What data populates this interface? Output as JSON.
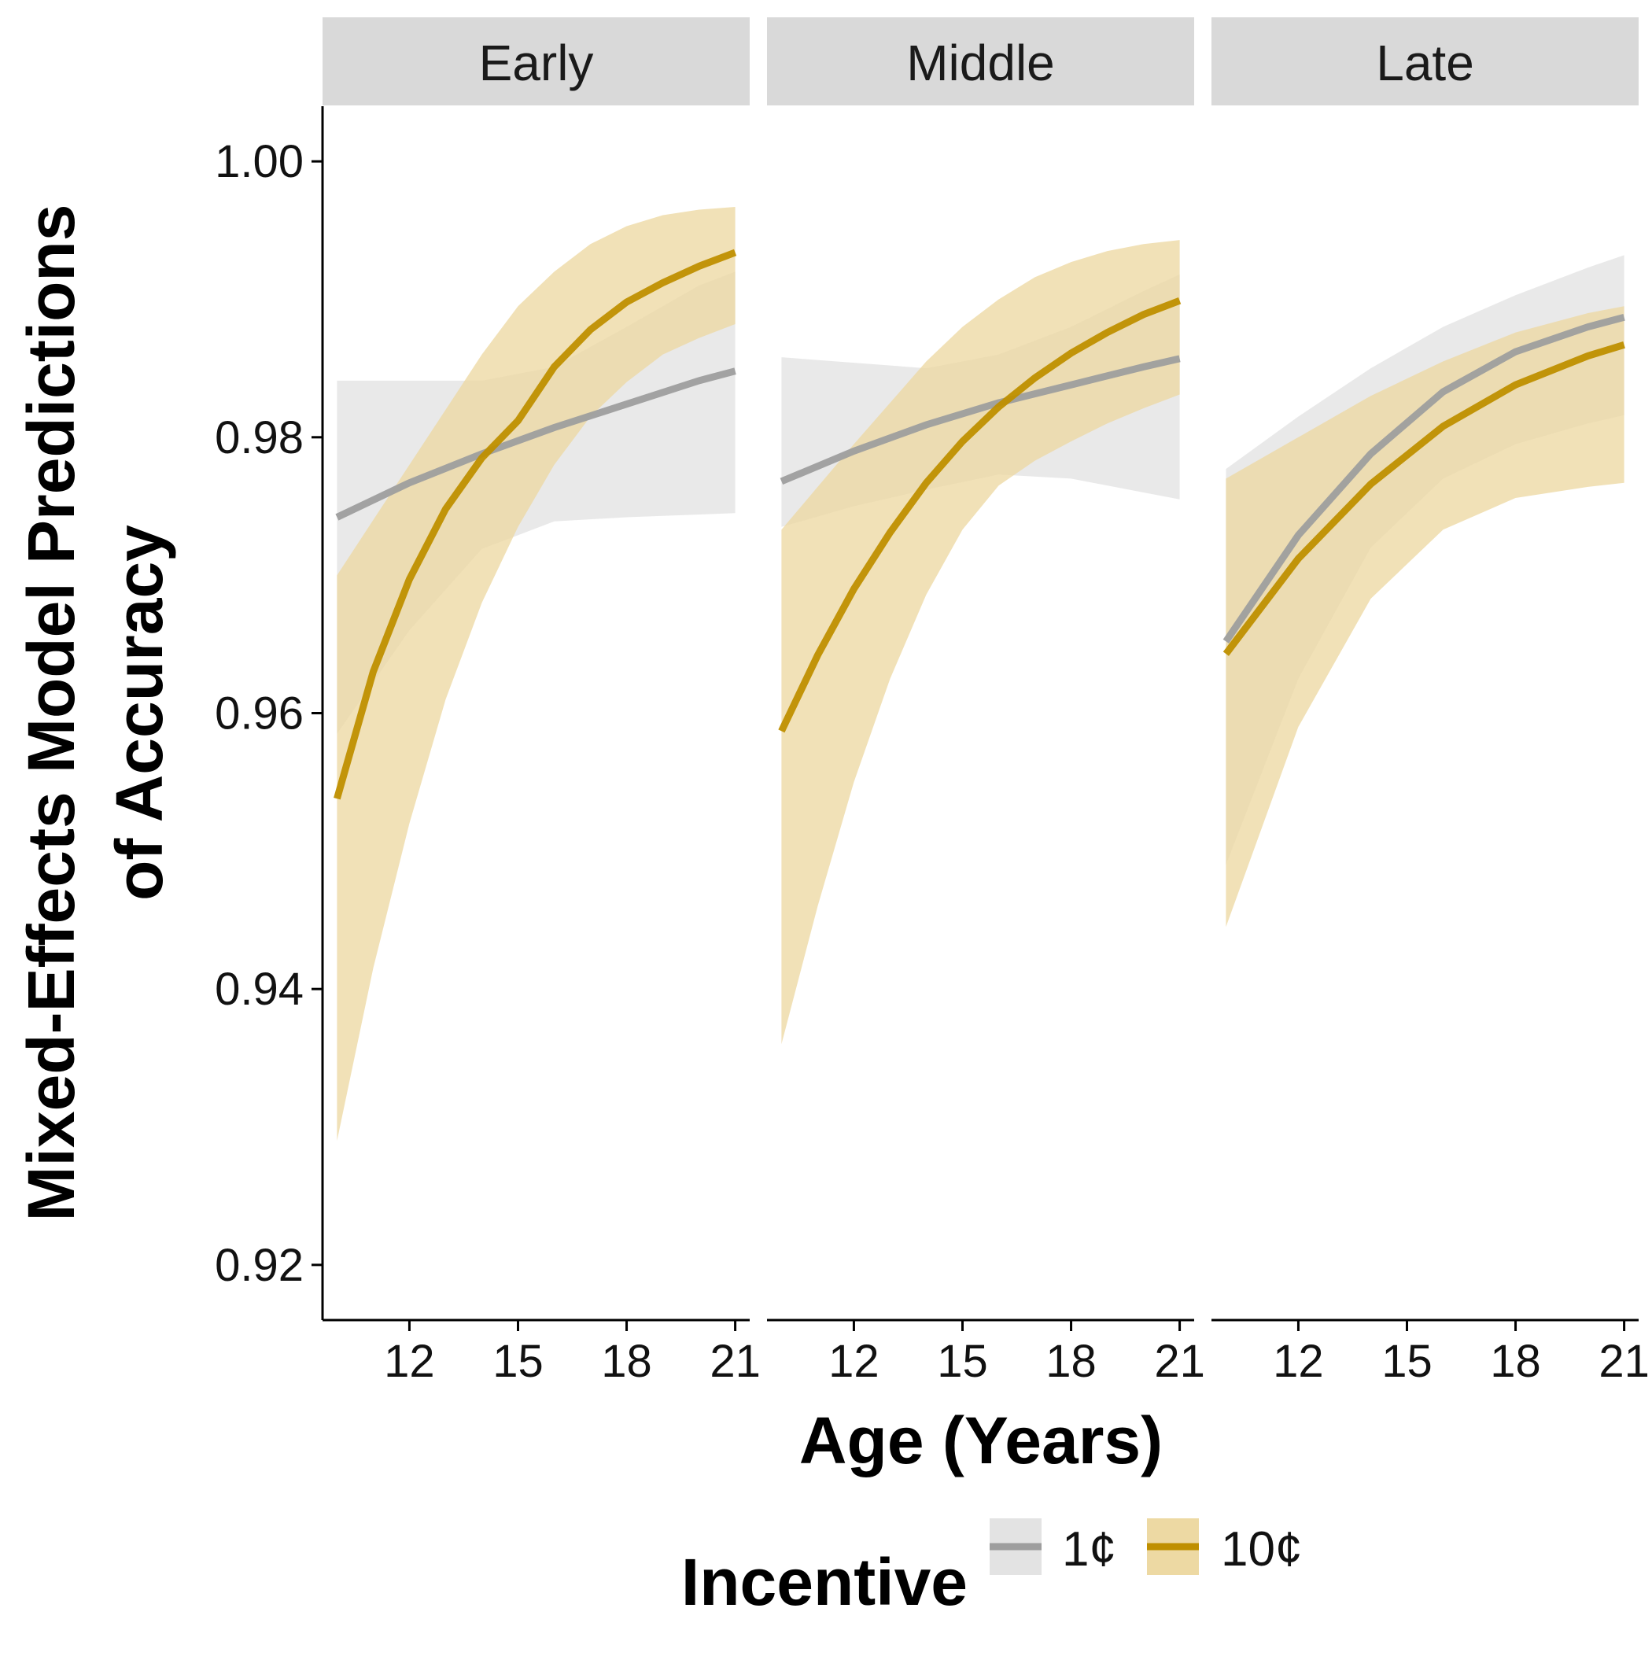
{
  "chart_data": {
    "type": "line",
    "facets": [
      "Early",
      "Middle",
      "Late"
    ],
    "xlabel": "Age (Years)",
    "ylabel": [
      "Mixed-Effects Model Predictions",
      "of Accuracy"
    ],
    "x_ticks": [
      12,
      15,
      18,
      21
    ],
    "y_ticks": [
      "0.92",
      "0.94",
      "0.96",
      "0.98",
      "1.00"
    ],
    "y_tick_values": [
      0.92,
      0.94,
      0.96,
      0.98,
      1.0
    ],
    "xlim": [
      9.6,
      21.4
    ],
    "ylim": [
      0.916,
      1.004
    ],
    "grid": false,
    "legend": {
      "title": "Incentive",
      "position": "bottom",
      "entries": [
        {
          "label": "1¢",
          "line_color": "#9e9e9e",
          "fill_color": "#e3e3e3"
        },
        {
          "label": "10¢",
          "line_color": "#bf8f00",
          "fill_color": "#edd9a3"
        }
      ]
    },
    "panels": [
      {
        "facet": "Early",
        "series": [
          {
            "name": "1¢",
            "x": [
              10,
              12,
              14,
              16,
              18,
              20,
              21
            ],
            "y": [
              0.9742,
              0.9767,
              0.9788,
              0.9807,
              0.9824,
              0.9841,
              0.9848
            ],
            "lower": [
              0.9585,
              0.966,
              0.9719,
              0.9739,
              0.9742,
              0.9744,
              0.9745
            ],
            "upper": [
              0.9841,
              0.9841,
              0.9841,
              0.9851,
              0.988,
              0.991,
              0.992
            ]
          },
          {
            "name": "10¢",
            "x": [
              10,
              11,
              12,
              13,
              14,
              15,
              16,
              17,
              18,
              19,
              20,
              21
            ],
            "y": [
              0.9538,
              0.963,
              0.9697,
              0.9748,
              0.9785,
              0.9812,
              0.9851,
              0.9878,
              0.9898,
              0.9912,
              0.9924,
              0.9934
            ],
            "lower": [
              0.929,
              0.9415,
              0.952,
              0.961,
              0.968,
              0.9735,
              0.978,
              0.9815,
              0.984,
              0.986,
              0.9872,
              0.9882
            ],
            "upper": [
              0.97,
              0.974,
              0.978,
              0.982,
              0.986,
              0.9895,
              0.992,
              0.994,
              0.9953,
              0.9961,
              0.9965,
              0.9967
            ]
          }
        ]
      },
      {
        "facet": "Middle",
        "series": [
          {
            "name": "1¢",
            "x": [
              10,
              12,
              14,
              16,
              18,
              20,
              21
            ],
            "y": [
              0.9768,
              0.979,
              0.9809,
              0.9825,
              0.9838,
              0.9851,
              0.9857
            ],
            "lower": [
              0.9735,
              0.975,
              0.9762,
              0.9773,
              0.977,
              0.976,
              0.9755
            ],
            "upper": [
              0.9858,
              0.9854,
              0.985,
              0.986,
              0.988,
              0.9906,
              0.9918
            ]
          },
          {
            "name": "10¢",
            "x": [
              10,
              11,
              12,
              13,
              14,
              15,
              16,
              17,
              18,
              19,
              20,
              21
            ],
            "y": [
              0.9587,
              0.9642,
              0.969,
              0.9731,
              0.9767,
              0.9797,
              0.9822,
              0.9843,
              0.9861,
              0.9876,
              0.9889,
              0.9899
            ],
            "lower": [
              0.936,
              0.946,
              0.955,
              0.9625,
              0.9686,
              0.9733,
              0.9765,
              0.9783,
              0.9797,
              0.981,
              0.9821,
              0.9831
            ],
            "upper": [
              0.9733,
              0.9764,
              0.9795,
              0.9825,
              0.9855,
              0.988,
              0.99,
              0.9916,
              0.9927,
              0.9935,
              0.994,
              0.9943
            ]
          }
        ]
      },
      {
        "facet": "Late",
        "series": [
          {
            "name": "1¢",
            "x": [
              10,
              12,
              14,
              16,
              18,
              20,
              21
            ],
            "y": [
              0.9652,
              0.9729,
              0.9788,
              0.9833,
              0.9862,
              0.988,
              0.9887
            ],
            "lower": [
              0.949,
              0.9625,
              0.972,
              0.977,
              0.9795,
              0.981,
              0.9816
            ],
            "upper": [
              0.9777,
              0.9815,
              0.985,
              0.988,
              0.9903,
              0.9923,
              0.9932
            ]
          },
          {
            "name": "10¢",
            "x": [
              10,
              12,
              14,
              16,
              18,
              20,
              21
            ],
            "y": [
              0.9643,
              0.9712,
              0.9766,
              0.9808,
              0.9838,
              0.9859,
              0.9867
            ],
            "lower": [
              0.9445,
              0.959,
              0.9683,
              0.9733,
              0.9756,
              0.9764,
              0.9767
            ],
            "upper": [
              0.977,
              0.98,
              0.983,
              0.9855,
              0.9876,
              0.989,
              0.9895
            ]
          }
        ]
      }
    ]
  }
}
